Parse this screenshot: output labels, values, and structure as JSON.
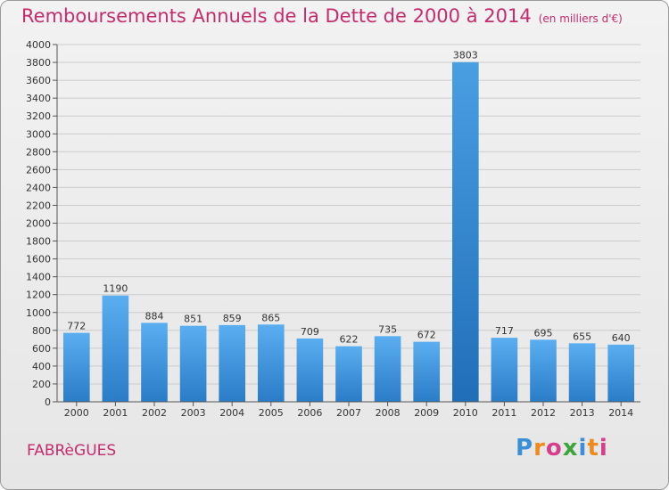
{
  "chart_data": {
    "type": "bar",
    "title": "Remboursements Annuels de la Dette de 2000 à 2014",
    "subtitle": "(en milliers d'€)",
    "categories": [
      "2000",
      "2001",
      "2002",
      "2003",
      "2004",
      "2005",
      "2006",
      "2007",
      "2008",
      "2009",
      "2010",
      "2011",
      "2012",
      "2013",
      "2014"
    ],
    "values": [
      772,
      1190,
      884,
      851,
      859,
      865,
      709,
      622,
      735,
      672,
      3803,
      717,
      695,
      655,
      640
    ],
    "ylim": [
      0,
      4000
    ],
    "yticks": [
      0,
      200,
      400,
      600,
      800,
      1000,
      1200,
      1400,
      1600,
      1800,
      2000,
      2200,
      2400,
      2600,
      2800,
      3000,
      3200,
      3400,
      3600,
      3800,
      4000
    ],
    "grid": true,
    "xlabel": "",
    "ylabel": ""
  },
  "place_name": "FABRèGUES",
  "logo": {
    "letters": [
      "P",
      "r",
      "o",
      "x",
      "i",
      "t",
      "i"
    ]
  },
  "colors": {
    "title": "#c62b6d",
    "bar_light": "#5aaef0",
    "bar_dark": "#2a7cc7",
    "grid": "#cccccc"
  }
}
